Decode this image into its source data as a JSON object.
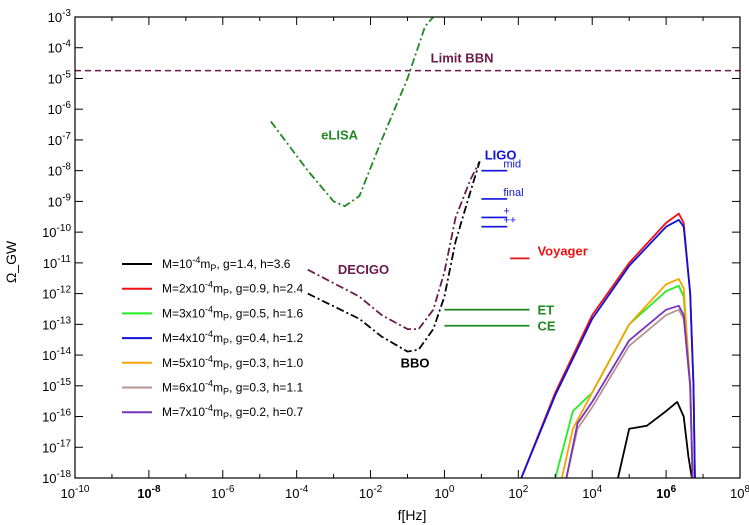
{
  "chart_data": {
    "type": "line",
    "title": "",
    "xlabel": "f[Hz]",
    "ylabel": "Ω_GW",
    "x_scale": "log",
    "y_scale": "log",
    "xlim": [
      1e-10,
      100000000.0
    ],
    "ylim": [
      1e-18,
      0.001
    ],
    "x_ticks": [
      {
        "value": 1e-10,
        "base": "10",
        "exp": "-10",
        "bold": false
      },
      {
        "value": 1e-08,
        "base": "10",
        "exp": "-8",
        "bold": true
      },
      {
        "value": 1e-06,
        "base": "10",
        "exp": "-6",
        "bold": false
      },
      {
        "value": 0.0001,
        "base": "10",
        "exp": "-4",
        "bold": false
      },
      {
        "value": 0.01,
        "base": "10",
        "exp": "-2",
        "bold": false
      },
      {
        "value": 1,
        "base": "10",
        "exp": "0",
        "bold": false
      },
      {
        "value": 100.0,
        "base": "10",
        "exp": "2",
        "bold": false
      },
      {
        "value": 10000.0,
        "base": "10",
        "exp": "4",
        "bold": false
      },
      {
        "value": 1000000.0,
        "base": "10",
        "exp": "6",
        "bold": true
      },
      {
        "value": 100000000.0,
        "base": "10",
        "exp": "8",
        "bold": false
      }
    ],
    "y_ticks": [
      {
        "value": 0.001,
        "base": "10",
        "exp": "-3"
      },
      {
        "value": 0.0001,
        "base": "10",
        "exp": "-4"
      },
      {
        "value": 1e-05,
        "base": "10",
        "exp": "-5"
      },
      {
        "value": 1e-06,
        "base": "10",
        "exp": "-6"
      },
      {
        "value": 1e-07,
        "base": "10",
        "exp": "-7"
      },
      {
        "value": 1e-08,
        "base": "10",
        "exp": "-8"
      },
      {
        "value": 1e-09,
        "base": "10",
        "exp": "-9"
      },
      {
        "value": 1e-10,
        "base": "10",
        "exp": "-10"
      },
      {
        "value": 1e-11,
        "base": "10",
        "exp": "-11"
      },
      {
        "value": 1e-12,
        "base": "10",
        "exp": "-12"
      },
      {
        "value": 1e-13,
        "base": "10",
        "exp": "-13"
      },
      {
        "value": 1e-14,
        "base": "10",
        "exp": "-14"
      },
      {
        "value": 1e-15,
        "base": "10",
        "exp": "-15"
      },
      {
        "value": 1e-16,
        "base": "10",
        "exp": "-16"
      },
      {
        "value": 1e-17,
        "base": "10",
        "exp": "-17"
      },
      {
        "value": 1e-18,
        "base": "10",
        "exp": "-18"
      }
    ],
    "grid": false,
    "legend_position": "lower-left",
    "series": [
      {
        "label_parts": [
          [
            "M=10",
            "-4"
          ],
          [
            "m",
            "P"
          ],
          [
            ",    g=1.4, h=3.6",
            ""
          ]
        ],
        "color": "#000000",
        "points": [
          [
            50000.0,
            1e-18
          ],
          [
            100000.0,
            4e-17
          ],
          [
            300000.0,
            5e-17
          ],
          [
            1000000.0,
            1.5e-16
          ],
          [
            2000000.0,
            3e-16
          ],
          [
            3000000.0,
            1e-16
          ],
          [
            4000000.0,
            5e-18
          ],
          [
            5000000.0,
            1e-18
          ]
        ]
      },
      {
        "label_parts": [
          [
            "M=2x10",
            "-4"
          ],
          [
            "m",
            "P"
          ],
          [
            ", g=0.9, h=2.4",
            ""
          ]
        ],
        "color": "#ee1111",
        "points": [
          [
            120,
            1e-18
          ],
          [
            1000.0,
            6e-16
          ],
          [
            10000.0,
            2e-13
          ],
          [
            100000.0,
            1e-11
          ],
          [
            1000000.0,
            2e-10
          ],
          [
            2200000.0,
            4e-10
          ],
          [
            3000000.0,
            2e-10
          ],
          [
            4500000.0,
            1e-12
          ],
          [
            5500000.0,
            1e-15
          ],
          [
            6000000.0,
            1e-18
          ]
        ]
      },
      {
        "label_parts": [
          [
            "M=3x10",
            "-4"
          ],
          [
            "m",
            "P"
          ],
          [
            ", g=0.5, h=1.6",
            ""
          ]
        ],
        "color": "#22ee22",
        "points": [
          [
            1000.0,
            1e-18
          ],
          [
            3000.0,
            1.5e-16
          ],
          [
            10000.0,
            6e-16
          ],
          [
            100000.0,
            1e-13
          ],
          [
            1000000.0,
            1.2e-12
          ],
          [
            2200000.0,
            1.8e-12
          ],
          [
            3000000.0,
            8e-13
          ],
          [
            4500000.0,
            1e-15
          ],
          [
            5200000.0,
            1e-18
          ]
        ]
      },
      {
        "label_parts": [
          [
            "M=4x10",
            "-4"
          ],
          [
            "m",
            "P"
          ],
          [
            ", g=0.4, h=1.2",
            ""
          ]
        ],
        "color": "#1111dd",
        "points": [
          [
            120,
            1e-18
          ],
          [
            1000.0,
            5e-16
          ],
          [
            10000.0,
            1.5e-13
          ],
          [
            100000.0,
            8e-12
          ],
          [
            1000000.0,
            1.5e-10
          ],
          [
            2200000.0,
            2.5e-10
          ],
          [
            3000000.0,
            1.5e-10
          ],
          [
            4500000.0,
            1e-12
          ],
          [
            5500000.0,
            1e-15
          ],
          [
            6000000.0,
            1e-18
          ]
        ]
      },
      {
        "label_parts": [
          [
            "M=5x10",
            "-4"
          ],
          [
            "m",
            "P"
          ],
          [
            ", g=0.3, h=1.0",
            ""
          ]
        ],
        "color": "#f5a400",
        "points": [
          [
            1500.0,
            1e-18
          ],
          [
            3000.0,
            4e-17
          ],
          [
            10000.0,
            6e-16
          ],
          [
            100000.0,
            1e-13
          ],
          [
            1000000.0,
            2e-12
          ],
          [
            2200000.0,
            3e-12
          ],
          [
            3000000.0,
            1.5e-12
          ],
          [
            4500000.0,
            1e-15
          ],
          [
            5200000.0,
            1e-18
          ]
        ]
      },
      {
        "label_parts": [
          [
            "M=6x10",
            "-4"
          ],
          [
            "m",
            "P"
          ],
          [
            ", g=0.3, h=1.1",
            ""
          ]
        ],
        "color": "#b49494",
        "points": [
          [
            2000.0,
            1e-18
          ],
          [
            4000.0,
            4e-17
          ],
          [
            10000.0,
            2e-16
          ],
          [
            100000.0,
            2e-14
          ],
          [
            1000000.0,
            2e-13
          ],
          [
            2200000.0,
            3e-13
          ],
          [
            3000000.0,
            1.5e-13
          ],
          [
            4500000.0,
            1e-15
          ],
          [
            5200000.0,
            1e-18
          ]
        ]
      },
      {
        "label_parts": [
          [
            "M=7x10",
            "-4"
          ],
          [
            "m",
            "P"
          ],
          [
            ", g=0.2, h=0.7",
            ""
          ]
        ],
        "color": "#7a33bb",
        "points": [
          [
            2000.0,
            1e-18
          ],
          [
            4000.0,
            6e-17
          ],
          [
            10000.0,
            3e-16
          ],
          [
            100000.0,
            3e-14
          ],
          [
            1000000.0,
            3e-13
          ],
          [
            2200000.0,
            4e-13
          ],
          [
            3000000.0,
            2e-13
          ],
          [
            4500000.0,
            1e-15
          ],
          [
            5200000.0,
            1e-18
          ]
        ]
      }
    ],
    "sensitivity_curves": [
      {
        "name": "eLISA",
        "color": "#228822",
        "style": "dashdot",
        "points": [
          [
            2e-05,
            4e-07
          ],
          [
            0.0002,
            1e-08
          ],
          [
            0.001,
            1e-09
          ],
          [
            0.002,
            7e-10
          ],
          [
            0.005,
            1.5e-09
          ],
          [
            0.02,
            1e-07
          ],
          [
            0.1,
            1e-05
          ],
          [
            0.3,
            0.0005
          ],
          [
            0.5,
            0.001
          ]
        ]
      },
      {
        "name": "DECIGO",
        "color": "#6b1a4a",
        "style": "dashdot",
        "points": [
          [
            0.0002,
            6e-12
          ],
          [
            0.005,
            8e-13
          ],
          [
            0.02,
            2e-13
          ],
          [
            0.1,
            7e-14
          ],
          [
            0.2,
            7e-14
          ],
          [
            0.5,
            3e-13
          ],
          [
            1,
            5e-12
          ],
          [
            2,
            3e-10
          ],
          [
            5,
            5e-09
          ],
          [
            9,
            2e-08
          ]
        ]
      },
      {
        "name": "BBO",
        "color": "#000000",
        "style": "dashdot",
        "points": [
          [
            0.0002,
            1e-12
          ],
          [
            0.005,
            1.5e-13
          ],
          [
            0.02,
            4e-14
          ],
          [
            0.1,
            1.3e-14
          ],
          [
            0.2,
            1.5e-14
          ],
          [
            0.5,
            7e-14
          ],
          [
            1,
            8e-13
          ],
          [
            2,
            5e-11
          ],
          [
            5,
            2e-09
          ],
          [
            9,
            2e-08
          ]
        ]
      }
    ],
    "limit_bbn": {
      "name": "Limit BBN",
      "color": "#6b1a4a",
      "value": 1.8e-05
    },
    "ligo": {
      "name": "LIGO",
      "color": "#1111dd",
      "lines": [
        {
          "label": "mid",
          "value": 1e-08,
          "x": [
            10,
            50
          ]
        },
        {
          "label": "final",
          "value": 1.2e-09,
          "x": [
            10,
            50
          ]
        },
        {
          "label": "+",
          "value": 3e-10,
          "x": [
            10,
            50
          ]
        },
        {
          "label": "++",
          "value": 1.5e-10,
          "x": [
            10,
            50
          ]
        }
      ]
    },
    "detectors": [
      {
        "name": "Voyager",
        "color": "#ee1111",
        "value": 1.4e-11,
        "x": [
          60,
          200
        ]
      },
      {
        "name": "ET",
        "color": "#228822",
        "value": 3e-13,
        "x": [
          1,
          200
        ]
      },
      {
        "name": "CE",
        "color": "#228822",
        "value": 9e-14,
        "x": [
          1,
          200
        ]
      }
    ]
  }
}
